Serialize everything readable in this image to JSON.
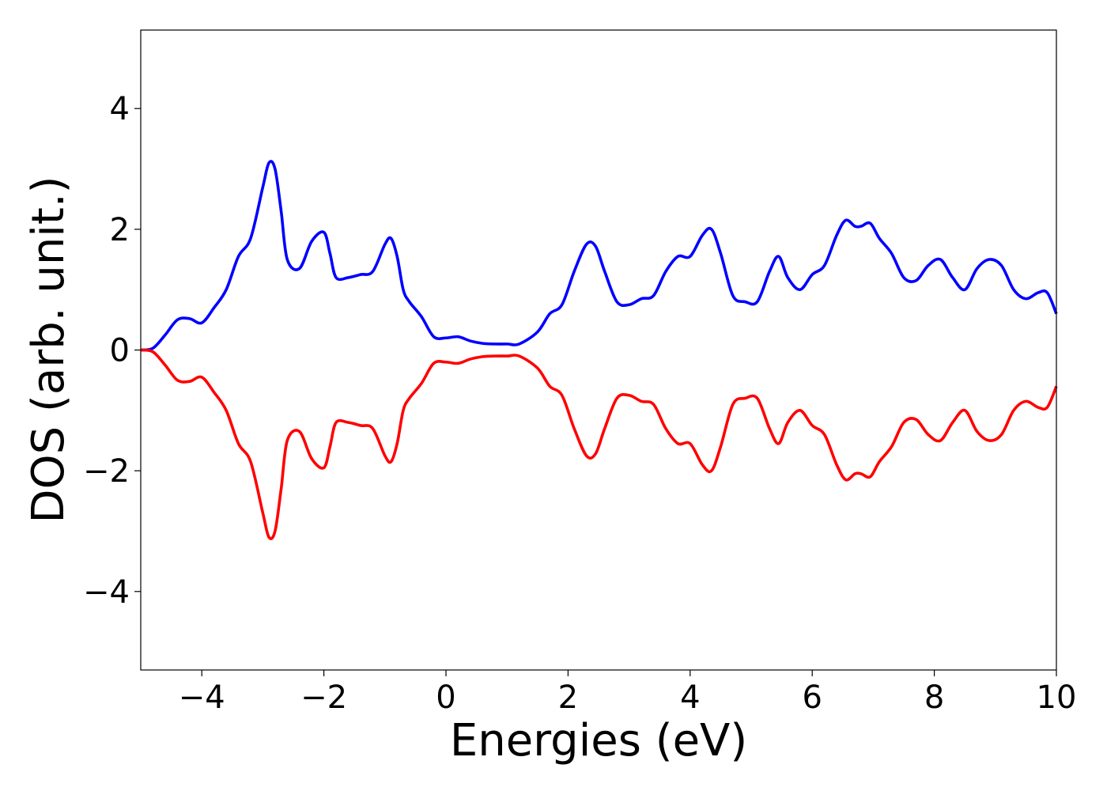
{
  "chart_data": {
    "type": "line",
    "title": "",
    "xlabel": "Energies (eV)",
    "ylabel": "DOS (arb. unit.)",
    "xlim": [
      -5,
      10
    ],
    "ylim": [
      -5.3,
      5.3
    ],
    "xticks": [
      -4,
      -2,
      0,
      2,
      4,
      6,
      8,
      10
    ],
    "xtick_labels": [
      "−4",
      "−2",
      "0",
      "2",
      "4",
      "6",
      "8",
      "10"
    ],
    "yticks": [
      -4,
      -2,
      0,
      2,
      4
    ],
    "ytick_labels": [
      "−4",
      "−2",
      "0",
      "2",
      "4"
    ],
    "grid": false,
    "legend": "none",
    "x": [
      -5.0,
      -4.8,
      -4.6,
      -4.4,
      -4.2,
      -4.0,
      -3.8,
      -3.6,
      -3.4,
      -3.2,
      -3.0,
      -2.9,
      -2.8,
      -2.7,
      -2.6,
      -2.4,
      -2.2,
      -2.0,
      -1.9,
      -1.8,
      -1.6,
      -1.4,
      -1.2,
      -1.0,
      -0.9,
      -0.8,
      -0.7,
      -0.6,
      -0.4,
      -0.2,
      0.0,
      0.2,
      0.4,
      0.6,
      0.8,
      1.0,
      1.2,
      1.5,
      1.7,
      1.9,
      2.1,
      2.3,
      2.45,
      2.6,
      2.8,
      3.0,
      3.2,
      3.4,
      3.6,
      3.8,
      4.0,
      4.2,
      4.35,
      4.5,
      4.7,
      4.9,
      5.1,
      5.3,
      5.45,
      5.6,
      5.8,
      6.0,
      6.2,
      6.4,
      6.55,
      6.7,
      6.8,
      6.95,
      7.1,
      7.3,
      7.5,
      7.7,
      7.9,
      8.1,
      8.3,
      8.5,
      8.7,
      8.9,
      9.1,
      9.3,
      9.5,
      9.7,
      9.85,
      10.0
    ],
    "series": [
      {
        "color": "#0000ff",
        "values": [
          0.0,
          0.03,
          0.25,
          0.5,
          0.52,
          0.45,
          0.7,
          1.0,
          1.55,
          1.85,
          2.7,
          3.1,
          3.0,
          2.3,
          1.5,
          1.35,
          1.8,
          1.95,
          1.6,
          1.2,
          1.2,
          1.25,
          1.3,
          1.75,
          1.85,
          1.55,
          1.0,
          0.8,
          0.55,
          0.22,
          0.2,
          0.22,
          0.15,
          0.11,
          0.1,
          0.1,
          0.1,
          0.3,
          0.6,
          0.75,
          1.3,
          1.75,
          1.72,
          1.3,
          0.8,
          0.75,
          0.85,
          0.9,
          1.3,
          1.55,
          1.55,
          1.9,
          2.0,
          1.6,
          0.9,
          0.8,
          0.8,
          1.3,
          1.55,
          1.2,
          1.0,
          1.25,
          1.4,
          1.9,
          2.15,
          2.05,
          2.05,
          2.1,
          1.85,
          1.6,
          1.2,
          1.15,
          1.4,
          1.5,
          1.2,
          1.0,
          1.35,
          1.5,
          1.4,
          1.0,
          0.85,
          0.95,
          0.95,
          0.6
        ]
      },
      {
        "color": "#ff0000",
        "values": [
          0.0,
          -0.03,
          -0.25,
          -0.5,
          -0.52,
          -0.45,
          -0.7,
          -1.0,
          -1.55,
          -1.85,
          -2.7,
          -3.1,
          -3.0,
          -2.3,
          -1.5,
          -1.35,
          -1.8,
          -1.95,
          -1.6,
          -1.2,
          -1.2,
          -1.25,
          -1.3,
          -1.75,
          -1.85,
          -1.55,
          -1.0,
          -0.8,
          -0.55,
          -0.22,
          -0.2,
          -0.22,
          -0.15,
          -0.11,
          -0.1,
          -0.1,
          -0.1,
          -0.3,
          -0.6,
          -0.75,
          -1.3,
          -1.75,
          -1.72,
          -1.3,
          -0.8,
          -0.75,
          -0.85,
          -0.9,
          -1.3,
          -1.55,
          -1.55,
          -1.9,
          -2.0,
          -1.6,
          -0.9,
          -0.8,
          -0.8,
          -1.3,
          -1.55,
          -1.2,
          -1.0,
          -1.25,
          -1.4,
          -1.9,
          -2.15,
          -2.05,
          -2.05,
          -2.1,
          -1.85,
          -1.6,
          -1.2,
          -1.15,
          -1.4,
          -1.5,
          -1.2,
          -1.0,
          -1.35,
          -1.5,
          -1.4,
          -1.0,
          -0.85,
          -0.95,
          -0.95,
          -0.6
        ]
      }
    ]
  }
}
